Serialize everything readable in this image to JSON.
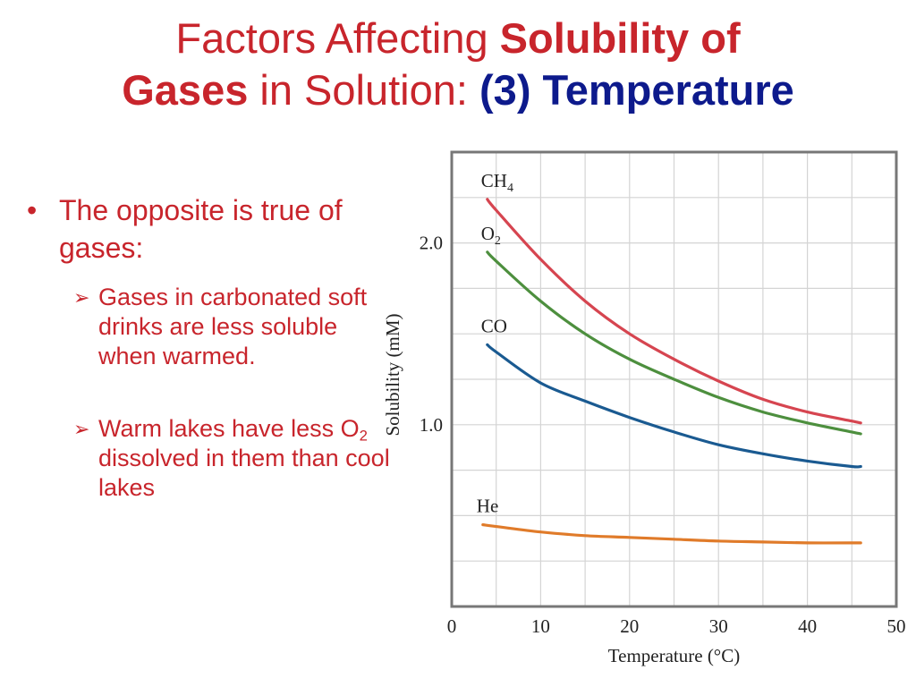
{
  "slide": {
    "title_part1": "Factors Affecting ",
    "title_part2": "Solubility of",
    "title_part3": "Gases",
    "title_part4": " in Solution: ",
    "title_part5": "(3) Temperature",
    "bullet_marker": "•",
    "sub_marker": "➢",
    "bullet1": "The opposite is true of gases:",
    "sub1": "Gases in carbonated soft drinks are less soluble when warmed.",
    "sub2_pre": "Warm lakes have less O",
    "sub2_subscript": "2",
    "sub2_post": " dissolved in them than cool lakes",
    "colors": {
      "title_red": "#c8252c",
      "title_blue": "#0d1a8c"
    }
  },
  "chart_data": {
    "type": "line",
    "xlabel": "Temperature (°C)",
    "ylabel": "Solubility (mM)",
    "xlim": [
      0,
      50
    ],
    "ylim": [
      0,
      2.5
    ],
    "x_ticks": [
      "0",
      "10",
      "20",
      "30",
      "40",
      "50"
    ],
    "y_ticks": [
      "1.0",
      "2.0"
    ],
    "grid": true,
    "series": [
      {
        "name_main": "CH",
        "name_sub": "4",
        "color": "#d64550",
        "x": [
          4,
          5,
          10,
          15,
          20,
          25,
          30,
          35,
          40,
          45,
          46
        ],
        "y": [
          2.24,
          2.18,
          1.91,
          1.68,
          1.5,
          1.36,
          1.24,
          1.14,
          1.07,
          1.02,
          1.01
        ]
      },
      {
        "name_main": "O",
        "name_sub": "2",
        "color": "#4d8f3e",
        "x": [
          4,
          5,
          10,
          15,
          20,
          25,
          30,
          35,
          40,
          45,
          46
        ],
        "y": [
          1.95,
          1.9,
          1.68,
          1.5,
          1.36,
          1.25,
          1.15,
          1.07,
          1.01,
          0.96,
          0.95
        ]
      },
      {
        "name_main": "CO",
        "name_sub": "",
        "color": "#1a5a91",
        "x": [
          4,
          5,
          10,
          15,
          20,
          25,
          30,
          35,
          40,
          45,
          46
        ],
        "y": [
          1.44,
          1.4,
          1.23,
          1.13,
          1.04,
          0.96,
          0.89,
          0.84,
          0.8,
          0.77,
          0.77
        ]
      },
      {
        "name_main": "He",
        "name_sub": "",
        "color": "#e07b2a",
        "x": [
          3.5,
          5,
          10,
          15,
          20,
          25,
          30,
          35,
          40,
          45,
          46
        ],
        "y": [
          0.45,
          0.44,
          0.41,
          0.39,
          0.38,
          0.37,
          0.36,
          0.355,
          0.35,
          0.35,
          0.35
        ]
      }
    ]
  }
}
